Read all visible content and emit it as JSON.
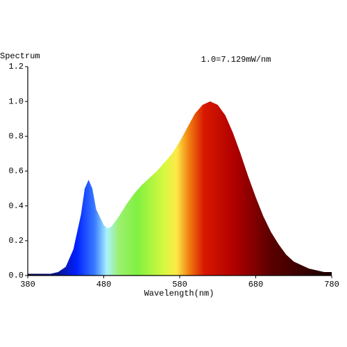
{
  "chart_data": {
    "type": "area",
    "ylabel": "Spectrum",
    "annotation": "1.0=7.129mW/nm",
    "xlabel": "Wavelength(nm)",
    "x": [
      380,
      390,
      400,
      410,
      420,
      430,
      440,
      450,
      455,
      460,
      465,
      470,
      480,
      485,
      490,
      500,
      510,
      520,
      530,
      540,
      550,
      560,
      570,
      580,
      590,
      600,
      610,
      620,
      630,
      640,
      650,
      660,
      670,
      680,
      690,
      700,
      710,
      720,
      730,
      740,
      750,
      760,
      770,
      780
    ],
    "values": [
      0.01,
      0.01,
      0.01,
      0.01,
      0.02,
      0.05,
      0.15,
      0.35,
      0.5,
      0.55,
      0.5,
      0.38,
      0.29,
      0.27,
      0.28,
      0.34,
      0.41,
      0.47,
      0.52,
      0.56,
      0.6,
      0.65,
      0.7,
      0.77,
      0.85,
      0.93,
      0.98,
      1.0,
      0.98,
      0.92,
      0.82,
      0.7,
      0.57,
      0.45,
      0.34,
      0.25,
      0.18,
      0.12,
      0.08,
      0.06,
      0.04,
      0.03,
      0.02,
      0.02
    ],
    "xlim": [
      380,
      780
    ],
    "xticks": [
      380,
      480,
      580,
      680,
      780
    ],
    "ylim": [
      0,
      1.2
    ],
    "yticks": [
      {
        "value": 0,
        "label": "0.0"
      },
      0.2,
      0.4,
      0.6,
      0.8,
      {
        "value": 1,
        "label": "1.0"
      },
      1.2
    ]
  }
}
